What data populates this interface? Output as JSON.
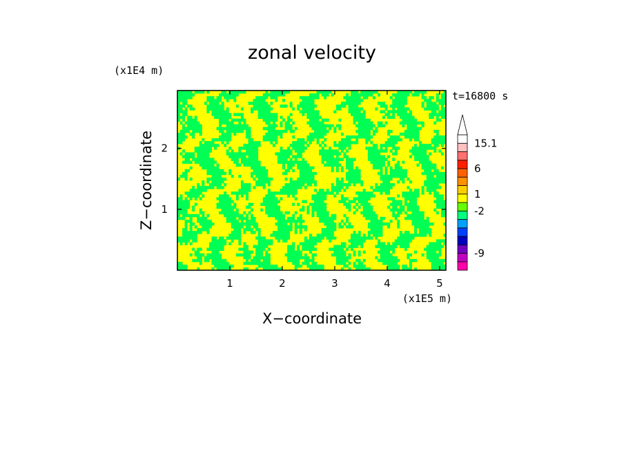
{
  "chart_data": {
    "type": "heatmap",
    "title": "zonal velocity",
    "xlabel": "X−coordinate",
    "ylabel": "Z−coordinate",
    "x_scale_label": "(x1E5 m)",
    "y_scale_label": "(x1E4 m)",
    "time_label": "t=16800 s",
    "xlim": [
      0,
      5.12
    ],
    "ylim": [
      0,
      2.95
    ],
    "x_ticks": [
      {
        "value": 1,
        "label": "1"
      },
      {
        "value": 2,
        "label": "2"
      },
      {
        "value": 3,
        "label": "3"
      },
      {
        "value": 4,
        "label": "4"
      },
      {
        "value": 5,
        "label": "5"
      }
    ],
    "y_ticks": [
      {
        "value": 1,
        "label": "1"
      },
      {
        "value": 2,
        "label": "2"
      }
    ],
    "field_colors": {
      "dominant_a": "#ffff00",
      "dominant_b": "#00ff55"
    },
    "colorbar": {
      "levels": [
        {
          "color": "#ff00aa"
        },
        {
          "color": "#c000c0"
        },
        {
          "color": "#7000c0"
        },
        {
          "color": "#0000c0"
        },
        {
          "color": "#0040ff"
        },
        {
          "color": "#00a0ff"
        },
        {
          "color": "#00ff80"
        },
        {
          "color": "#66ff00"
        },
        {
          "color": "#ffff00"
        },
        {
          "color": "#ffd000"
        },
        {
          "color": "#ff9000"
        },
        {
          "color": "#ff6000"
        },
        {
          "color": "#ff2000"
        },
        {
          "color": "#ff7070"
        },
        {
          "color": "#ffc0c0"
        },
        {
          "color": "#ffffff"
        }
      ],
      "labels": [
        {
          "text": "-9",
          "level_index": 1
        },
        {
          "text": "-2",
          "level_index": 6
        },
        {
          "text": "1",
          "level_index": 8
        },
        {
          "text": "6",
          "level_index": 11
        },
        {
          "text": "15.1",
          "level_index": 14
        }
      ]
    }
  }
}
